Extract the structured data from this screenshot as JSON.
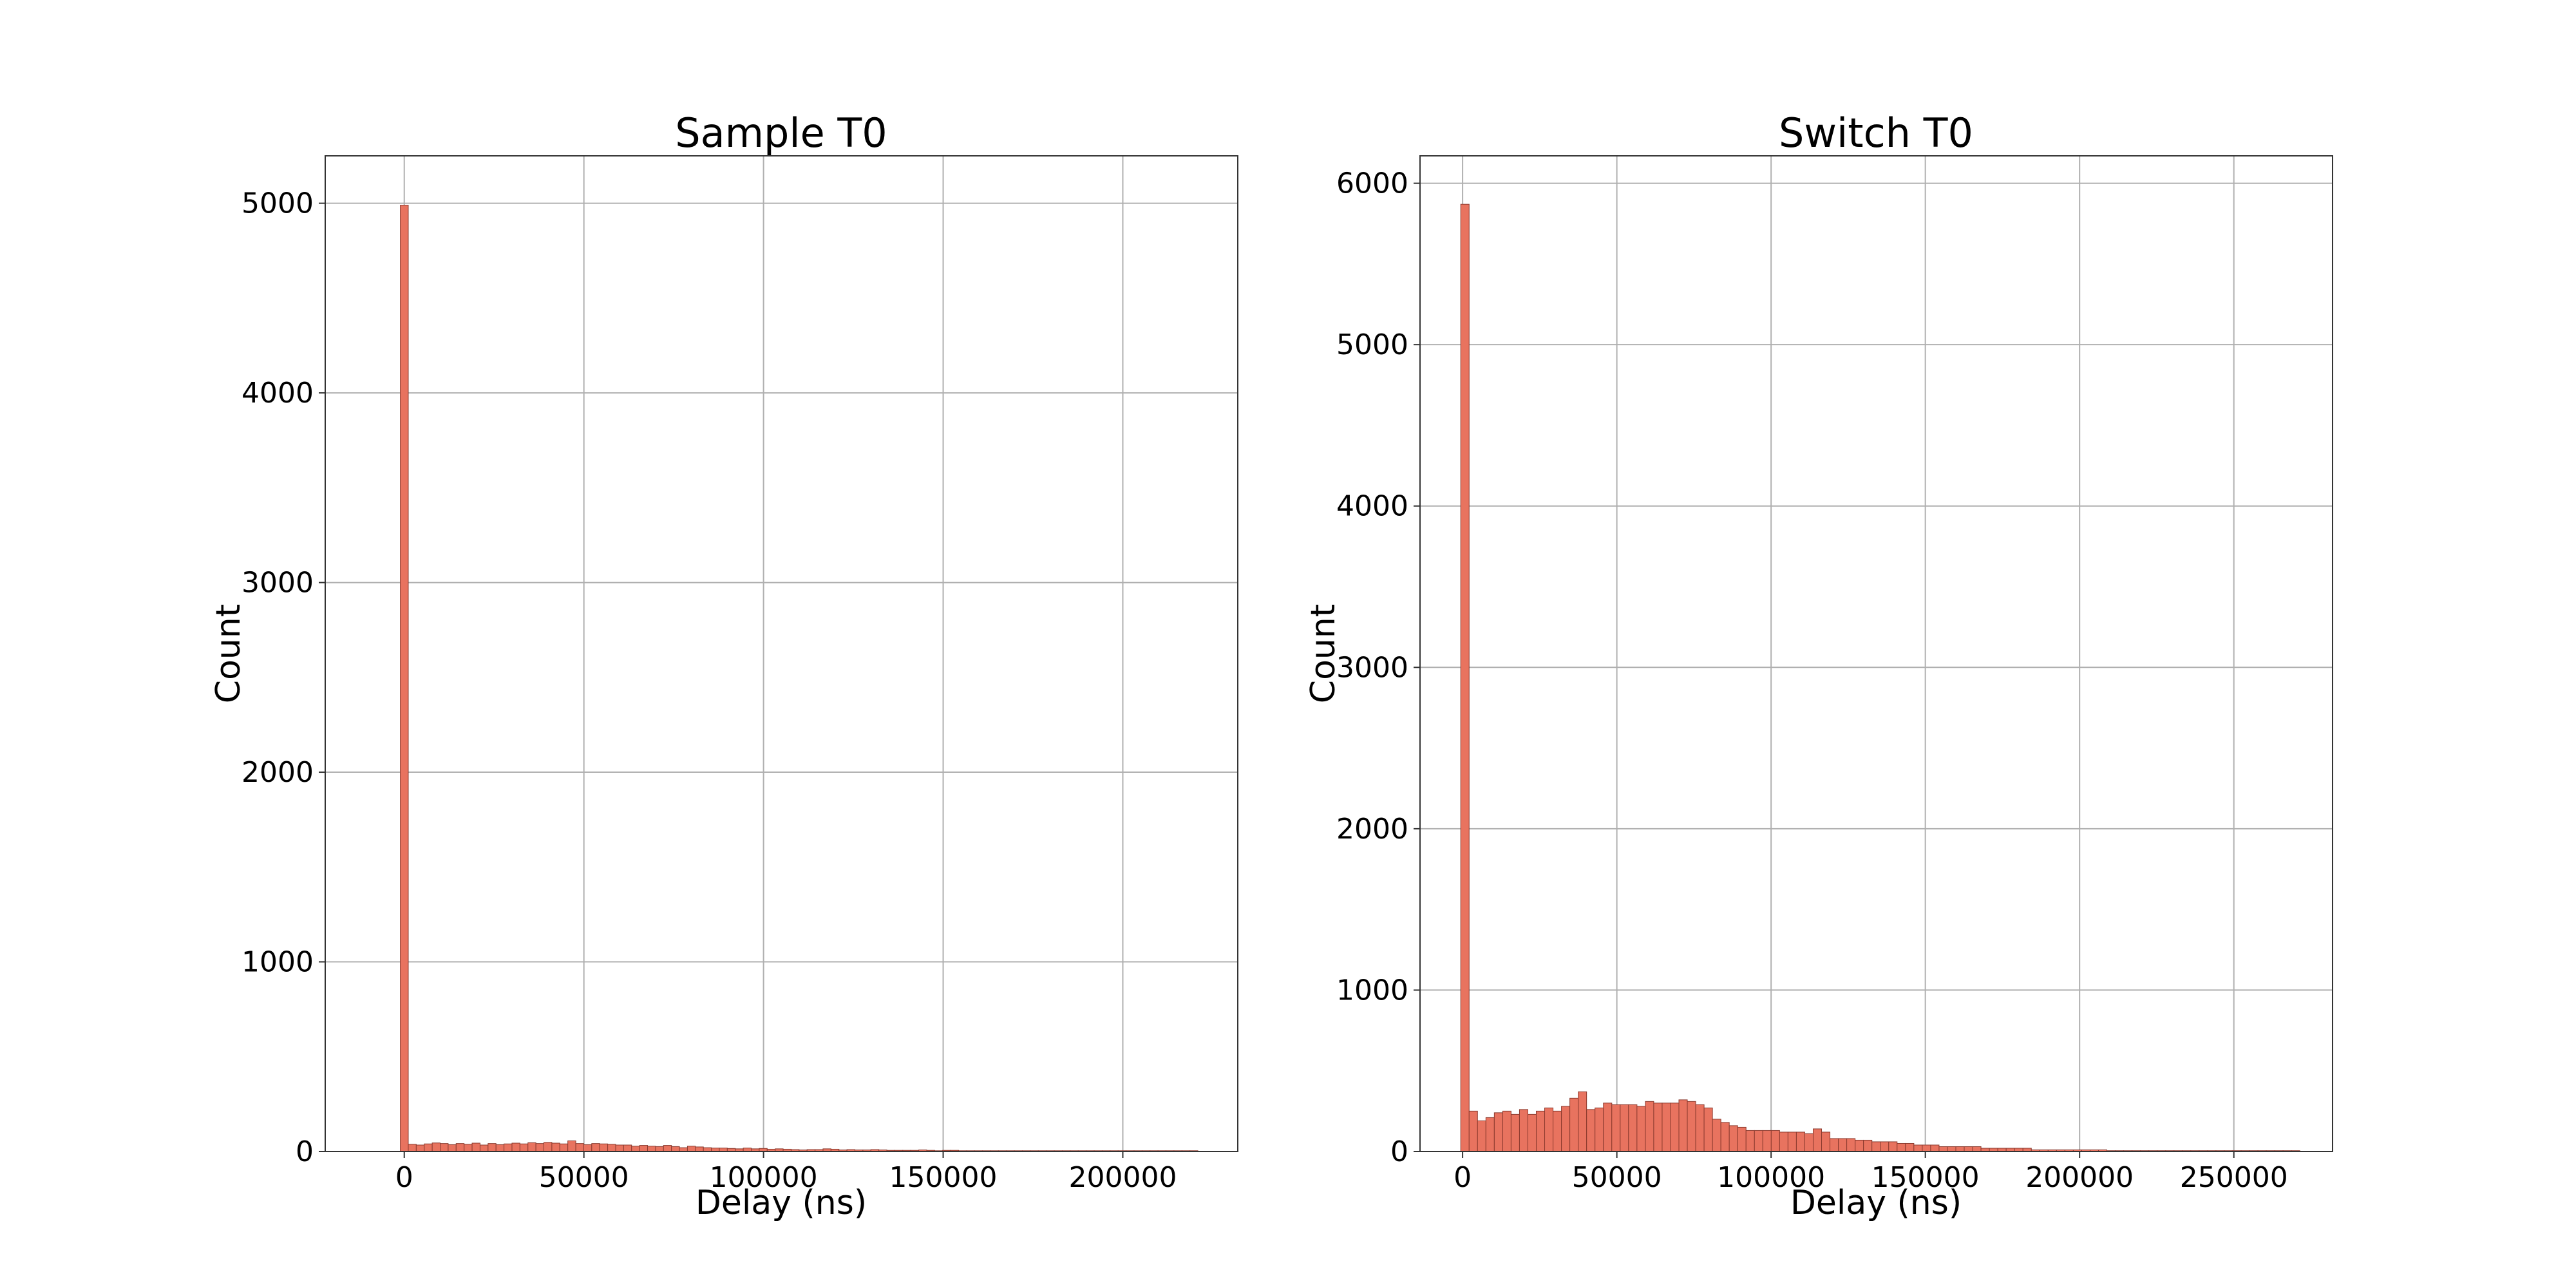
{
  "colors": {
    "bar_fill": "#e8735f",
    "bar_edge": "#8a3a2e",
    "grid": "#b0b0b0",
    "frame": "#333333"
  },
  "chart_data": [
    {
      "type": "bar",
      "title": "Sample T0",
      "xlabel": "Delay (ns)",
      "ylabel": "Count",
      "xlim": [
        -22000,
        232000
      ],
      "ylim": [
        0,
        5250
      ],
      "bin_start": -1100,
      "bin_width": 2220,
      "xticks": [
        0,
        50000,
        100000,
        150000,
        200000
      ],
      "yticks": [
        0,
        1000,
        2000,
        3000,
        4000,
        5000
      ],
      "grid": true,
      "values": [
        4990,
        38,
        34,
        40,
        45,
        42,
        36,
        42,
        38,
        44,
        34,
        42,
        36,
        40,
        44,
        40,
        46,
        42,
        48,
        44,
        40,
        56,
        42,
        36,
        42,
        40,
        38,
        34,
        34,
        28,
        32,
        28,
        26,
        32,
        26,
        20,
        28,
        24,
        20,
        18,
        18,
        16,
        14,
        18,
        14,
        16,
        12,
        14,
        12,
        10,
        8,
        10,
        10,
        14,
        12,
        8,
        10,
        8,
        8,
        10,
        8,
        6,
        6,
        6,
        6,
        8,
        6,
        4,
        6,
        6,
        4,
        4,
        4,
        4,
        4,
        4,
        4,
        4,
        4,
        4,
        4,
        4,
        4,
        4,
        4,
        4,
        4,
        4,
        4,
        4,
        4,
        4,
        4,
        4,
        4,
        4,
        4,
        4,
        4,
        4
      ]
    },
    {
      "type": "bar",
      "title": "Switch T0",
      "xlabel": "Delay (ns)",
      "ylabel": "Count",
      "xlim": [
        -13800,
        282000
      ],
      "ylim": [
        0,
        6170
      ],
      "bin_start": -600,
      "bin_width": 2720,
      "xticks": [
        0,
        50000,
        100000,
        150000,
        200000,
        250000
      ],
      "yticks": [
        0,
        1000,
        2000,
        3000,
        4000,
        5000,
        6000
      ],
      "grid": true,
      "values": [
        5870,
        250,
        190,
        210,
        240,
        250,
        230,
        260,
        230,
        250,
        270,
        250,
        280,
        330,
        370,
        260,
        270,
        300,
        290,
        290,
        290,
        280,
        310,
        300,
        300,
        300,
        320,
        310,
        290,
        270,
        200,
        180,
        160,
        150,
        130,
        130,
        130,
        130,
        120,
        120,
        120,
        110,
        140,
        120,
        80,
        80,
        80,
        70,
        70,
        60,
        60,
        60,
        50,
        50,
        40,
        40,
        40,
        30,
        30,
        30,
        30,
        30,
        20,
        20,
        20,
        20,
        20,
        20,
        10,
        10,
        10,
        10,
        10,
        10,
        10,
        10,
        10,
        5,
        5,
        5,
        5,
        5,
        5,
        5,
        5,
        5,
        5,
        5,
        5,
        5,
        5,
        5,
        5,
        5,
        5,
        5,
        5,
        5,
        5,
        5
      ]
    }
  ]
}
